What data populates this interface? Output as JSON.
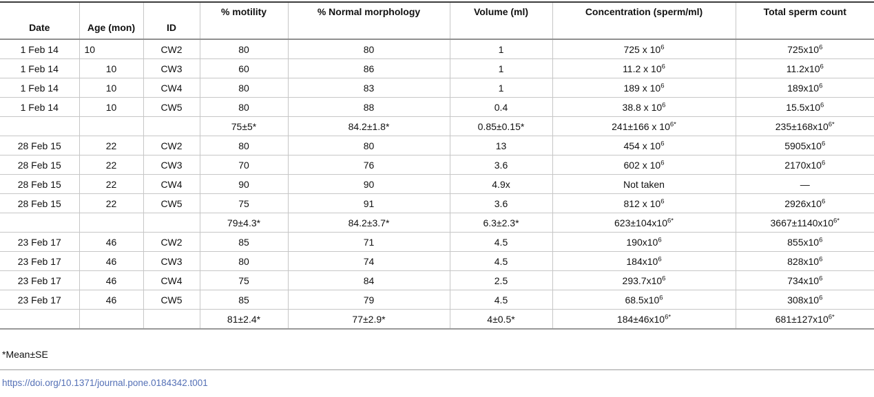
{
  "table": {
    "columns": [
      "Date",
      "Age (mon)",
      "ID",
      "% motility",
      "% Normal morphology",
      "Volume (ml)",
      "Concentration (sperm/ml)",
      "Total sperm count"
    ],
    "rows": [
      [
        "1 Feb 14",
        "10",
        "CW2",
        "80",
        "80",
        "1",
        "725 x 10^{6}",
        "725x10^{6}"
      ],
      [
        "1 Feb 14",
        "10",
        "CW3",
        "60",
        "86",
        "1",
        "11.2 x 10^{6}",
        "11.2x10^{6}"
      ],
      [
        "1 Feb 14",
        "10",
        "CW4",
        "80",
        "83",
        "1",
        "189 x 10^{6}",
        "189x10^{6}"
      ],
      [
        "1 Feb 14",
        "10",
        "CW5",
        "80",
        "88",
        "0.4",
        "38.8 x 10^{6}",
        "15.5x10^{6}"
      ],
      [
        "",
        "",
        "",
        "75±5*",
        "84.2±1.8*",
        "0.85±0.15*",
        "241±166 x 10^{6*}",
        "235±168x10^{6*}"
      ],
      [
        "28 Feb 15",
        "22",
        "CW2",
        "80",
        "80",
        "13",
        "454 x 10^{6}",
        "5905x10^{6}"
      ],
      [
        "28 Feb 15",
        "22",
        "CW3",
        "70",
        "76",
        "3.6",
        "602 x 10^{6}",
        "2170x10^{6}"
      ],
      [
        "28 Feb 15",
        "22",
        "CW4",
        "90",
        "90",
        "4.9x",
        "Not taken",
        "—"
      ],
      [
        "28 Feb 15",
        "22",
        "CW5",
        "75",
        "91",
        "3.6",
        "812 x 10^{6}",
        "2926x10^{6}"
      ],
      [
        "",
        "",
        "",
        "79±4.3*",
        "84.2±3.7*",
        "6.3±2.3*",
        "623±104x10^{6*}",
        "3667±1140x10^{6*}"
      ],
      [
        "23 Feb 17",
        "46",
        "CW2",
        "85",
        "71",
        "4.5",
        "190x10^{6}",
        "855x10^{6}"
      ],
      [
        "23 Feb 17",
        "46",
        "CW3",
        "80",
        "74",
        "4.5",
        "184x10^{6}",
        "828x10^{6}"
      ],
      [
        "23 Feb 17",
        "46",
        "CW4",
        "75",
        "84",
        "2.5",
        "293.7x10^{6}",
        "734x10^{6}"
      ],
      [
        "23 Feb 17",
        "46",
        "CW5",
        "85",
        "79",
        "4.5",
        "68.5x10^{6}",
        "308x10^{6}"
      ],
      [
        "",
        "",
        "",
        "81±2.4*",
        "77±2.9*",
        "4±0.5*",
        "184±46x10^{6*}",
        "681±127x10^{6*}"
      ]
    ],
    "summary_row_indexes": [
      4,
      9,
      14
    ]
  },
  "footnote": "*Mean±SE",
  "doi_link": "https://doi.org/10.1371/journal.pone.0184342.t001",
  "colors": {
    "link": "#5470b6",
    "table_top_border": "#3a3a3a",
    "grid_line": "#c6c6c6",
    "text": "#111111"
  }
}
